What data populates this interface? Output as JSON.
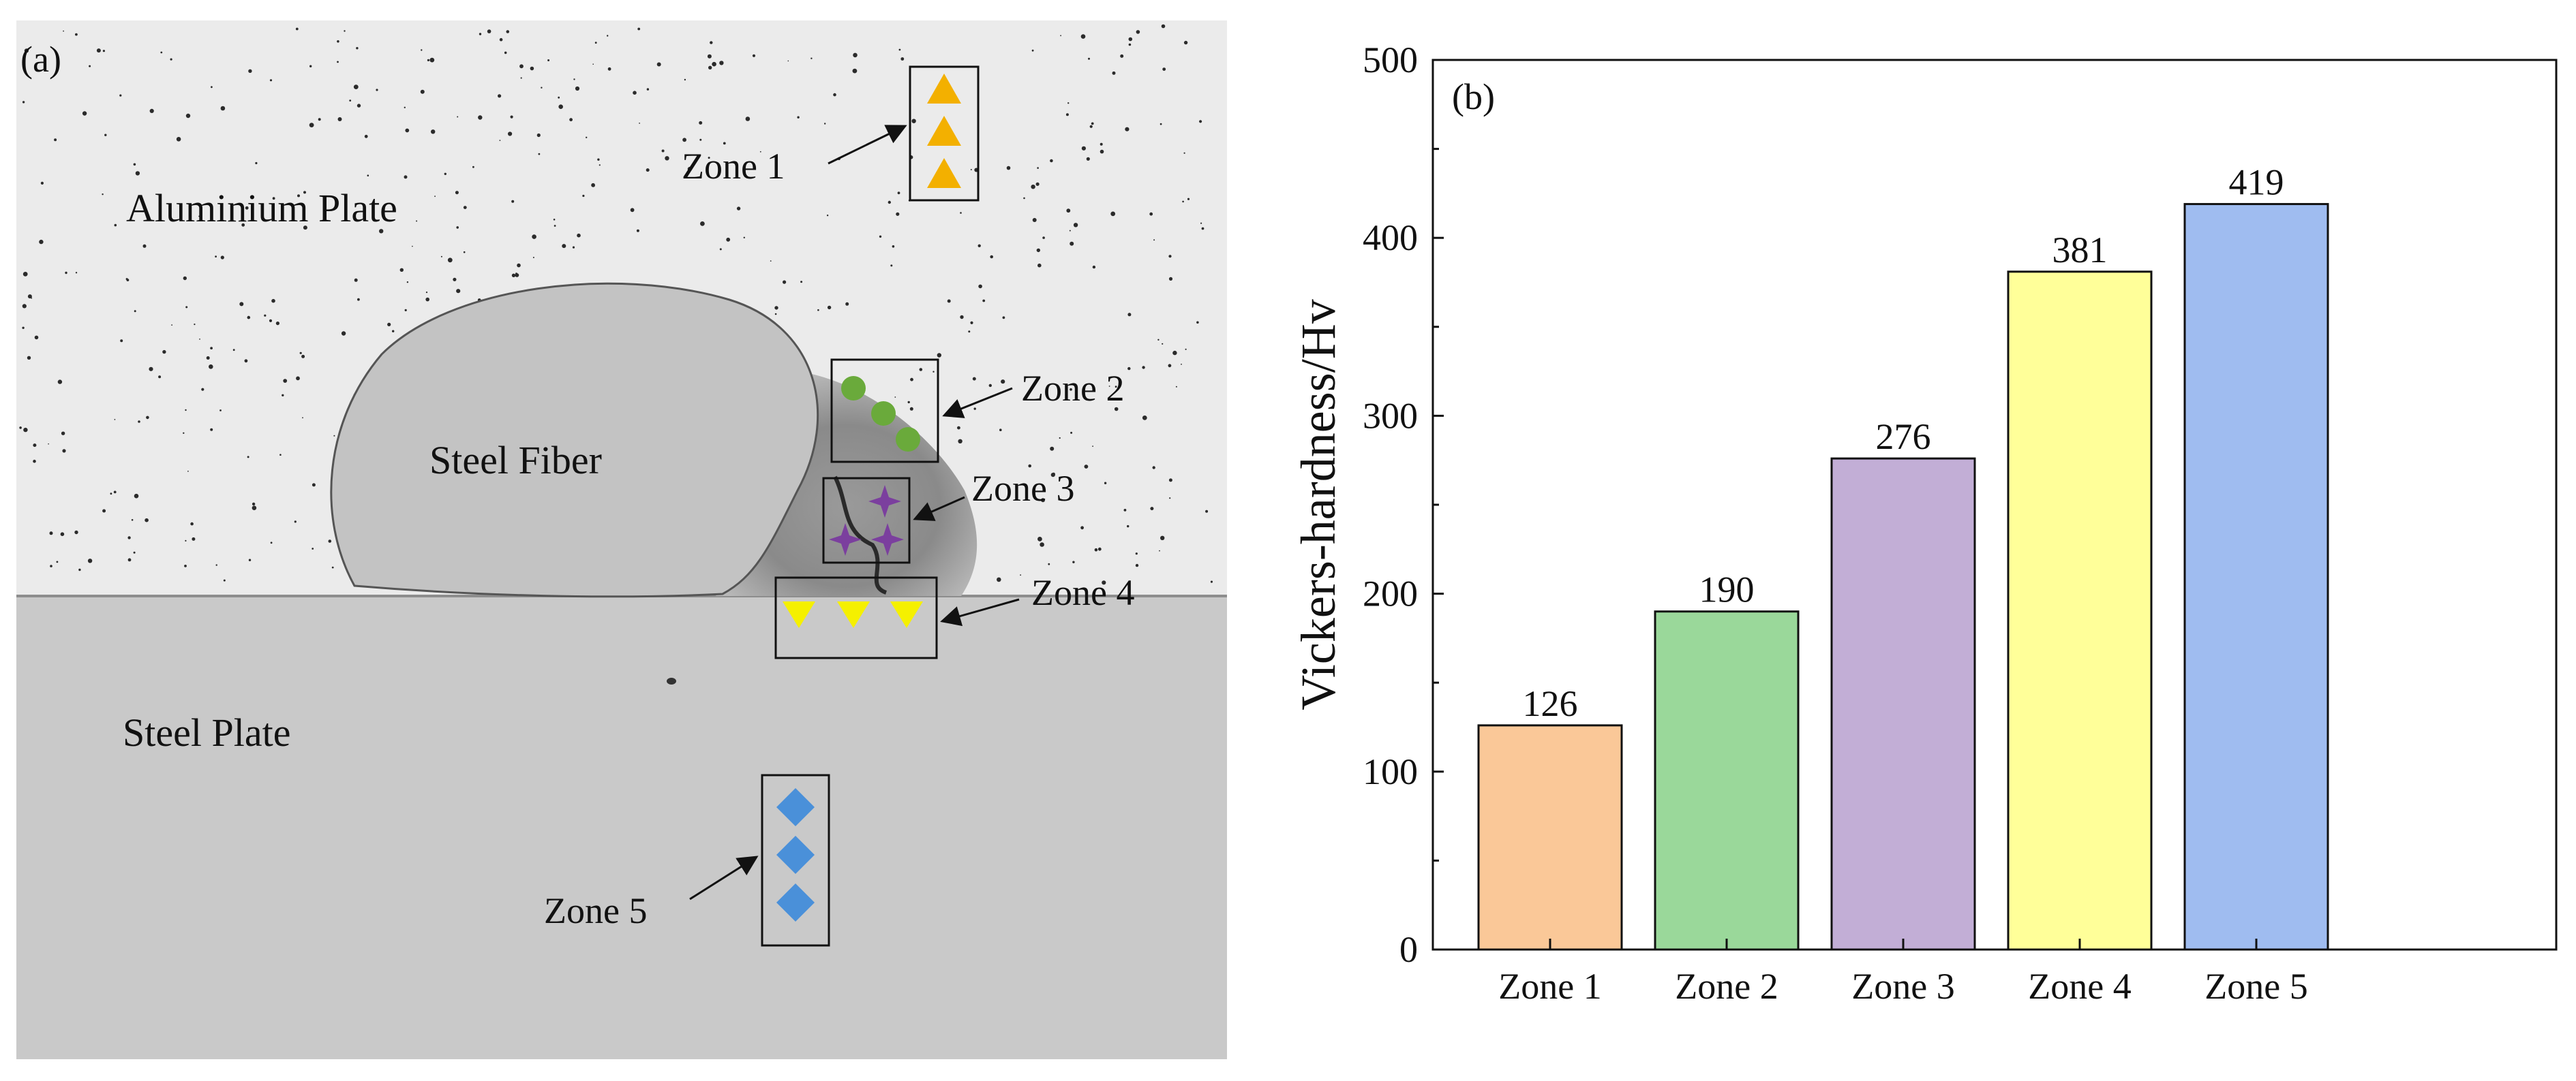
{
  "panel_a": {
    "label": "(a)",
    "regions": {
      "aluminium": "Aluminium Plate",
      "steel_fiber": "Steel Fiber",
      "steel_plate": "Steel Plate"
    },
    "zones": [
      "Zone 1",
      "Zone 2",
      "Zone 3",
      "Zone 4",
      "Zone 5"
    ],
    "marker_colors": {
      "zone1": "#f3b000",
      "zone2": "#6aaa3b",
      "zone3": "#7b3f9e",
      "zone4": "#f5f000",
      "zone5": "#4a90d9"
    }
  },
  "chart_data": {
    "type": "bar",
    "panel_label": "(b)",
    "categories": [
      "Zone 1",
      "Zone 2",
      "Zone 3",
      "Zone 4",
      "Zone 5"
    ],
    "values": [
      126,
      190,
      276,
      381,
      419
    ],
    "value_labels": [
      "126",
      "190",
      "276",
      "381",
      "419"
    ],
    "colors": [
      "#fac898",
      "#9ad89a",
      "#c2aed6",
      "#ffff99",
      "#9fbcf0"
    ],
    "ylabel": "Vickers-hardness/Hv",
    "xlabel": "",
    "ylim": [
      0,
      500
    ],
    "yticks": [
      0,
      100,
      200,
      300,
      400,
      500
    ],
    "ytick_labels": [
      "0",
      "100",
      "200",
      "300",
      "400",
      "500"
    ],
    "grid": false
  }
}
